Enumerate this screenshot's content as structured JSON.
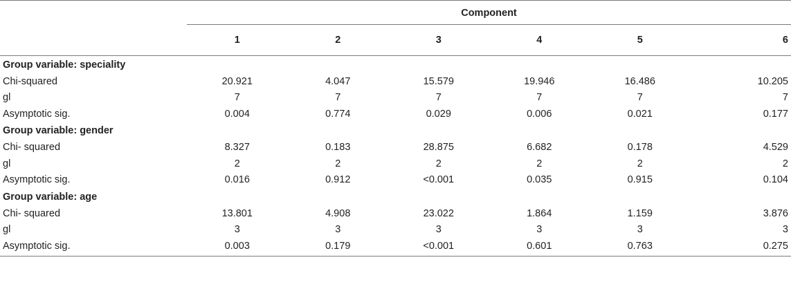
{
  "header": {
    "component_label": "Component",
    "columns": [
      "1",
      "2",
      "3",
      "4",
      "5",
      "6"
    ]
  },
  "groups": [
    {
      "title": "Group variable: speciality",
      "rows": [
        {
          "label": "Chi-squared",
          "values": [
            "20.921",
            "4.047",
            "15.579",
            "19.946",
            "16.486",
            "10.205"
          ]
        },
        {
          "label": "gl",
          "values": [
            "7",
            "7",
            "7",
            "7",
            "7",
            "7"
          ]
        },
        {
          "label": "Asymptotic sig.",
          "values": [
            "0.004",
            "0.774",
            "0.029",
            "0.006",
            "0.021",
            "0.177"
          ]
        }
      ]
    },
    {
      "title": "Group variable: gender",
      "rows": [
        {
          "label": "Chi- squared",
          "values": [
            "8.327",
            "0.183",
            "28.875",
            "6.682",
            "0.178",
            "4.529"
          ]
        },
        {
          "label": "gl",
          "values": [
            "2",
            "2",
            "2",
            "2",
            "2",
            "2"
          ]
        },
        {
          "label": "Asymptotic sig.",
          "values": [
            "0.016",
            "0.912",
            "<0.001",
            "0.035",
            "0.915",
            "0.104"
          ]
        }
      ]
    },
    {
      "title": "Group variable: age",
      "rows": [
        {
          "label": "Chi- squared",
          "values": [
            "13.801",
            "4.908",
            "23.022",
            "1.864",
            "1.159",
            "3.876"
          ]
        },
        {
          "label": "gl",
          "values": [
            "3",
            "3",
            "3",
            "3",
            "3",
            "3"
          ]
        },
        {
          "label": "Asymptotic sig.",
          "values": [
            "0.003",
            "0.179",
            "<0.001",
            "0.601",
            "0.763",
            "0.275"
          ]
        }
      ]
    }
  ]
}
